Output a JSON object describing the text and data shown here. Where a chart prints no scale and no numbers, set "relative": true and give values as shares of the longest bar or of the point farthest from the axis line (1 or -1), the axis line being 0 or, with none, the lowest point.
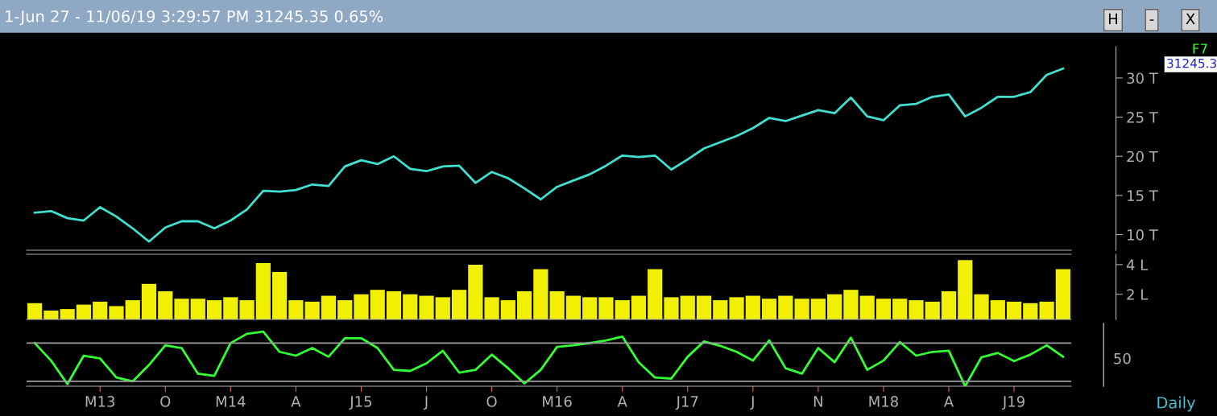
{
  "chart_data": [
    {
      "type": "line",
      "title": "1-Jun 27 - 11/06/19 3:29:57 PM 31245.35 0.65%",
      "annotations": [
        "31245.3",
        "F7",
        "H",
        "-",
        "X"
      ],
      "categories": [
        null,
        null,
        null,
        null,
        null,
        null,
        null,
        null,
        null,
        null,
        null,
        null,
        null,
        null,
        null,
        null,
        null,
        null,
        null,
        null,
        null,
        null,
        null,
        null,
        null,
        null,
        null,
        null,
        null,
        null,
        null,
        null,
        null,
        null,
        null,
        null,
        null,
        null,
        null,
        null,
        null,
        null,
        null,
        null,
        null,
        null,
        null,
        null,
        null,
        null,
        null,
        null,
        null,
        null,
        null,
        null,
        null,
        null,
        null,
        null,
        null,
        null,
        null,
        null
      ],
      "series": [
        {
          "color": "#40e0d0",
          "values": [
            12.8,
            13.0,
            12.1,
            11.8,
            13.5,
            12.3,
            10.8,
            9.1,
            10.9,
            11.7,
            11.7,
            10.8,
            11.8,
            13.2,
            15.6,
            15.5,
            15.7,
            16.4,
            16.2,
            18.7,
            19.5,
            19.0,
            20.0,
            18.4,
            18.1,
            18.7,
            18.8,
            16.6,
            18.0,
            17.2,
            15.9,
            14.5,
            16.1,
            16.9,
            17.7,
            18.8,
            20.1,
            19.9,
            20.1,
            18.3,
            19.6,
            21.0,
            21.8,
            22.6,
            23.6,
            24.9,
            24.5,
            25.2,
            25.9,
            25.5,
            27.5,
            25.1,
            24.6,
            26.5,
            26.7,
            27.6,
            27.9,
            25.1,
            26.2,
            27.6,
            27.6,
            28.2,
            30.4,
            31.2
          ]
        }
      ],
      "ylim": [
        8,
        34
      ],
      "yticks": [
        {
          "value": 10,
          "label": "10 T"
        },
        {
          "value": 15,
          "label": "15 T"
        },
        {
          "value": 20,
          "label": "20 T"
        },
        {
          "value": 25,
          "label": "25 T"
        },
        {
          "value": 30,
          "label": "30 T"
        }
      ],
      "tick_labels": "y"
    },
    {
      "type": "bar",
      "categories": [
        null,
        null,
        null,
        null,
        null,
        null,
        null,
        null,
        null,
        null,
        null,
        null,
        null,
        null,
        null,
        null,
        null,
        null,
        null,
        null,
        null,
        null,
        null,
        null,
        null,
        null,
        null,
        null,
        null,
        null,
        null,
        null,
        null,
        null,
        null,
        null,
        null,
        null,
        null,
        null,
        null,
        null,
        null,
        null,
        null,
        null,
        null,
        null,
        null,
        null,
        null,
        null,
        null,
        null,
        null,
        null,
        null,
        null,
        null,
        null,
        null,
        null,
        null,
        null
      ],
      "series": [
        {
          "color": "#f0f000",
          "values": [
            1.4,
            0.9,
            1.0,
            1.3,
            1.5,
            1.2,
            1.6,
            2.7,
            2.2,
            1.7,
            1.7,
            1.6,
            1.8,
            1.6,
            4.1,
            3.5,
            1.6,
            1.5,
            1.9,
            1.6,
            2.0,
            2.3,
            2.2,
            2.0,
            1.9,
            1.8,
            2.3,
            4.0,
            1.8,
            1.6,
            2.2,
            3.7,
            2.2,
            1.9,
            1.8,
            1.8,
            1.6,
            1.9,
            3.7,
            1.8,
            1.9,
            1.9,
            1.6,
            1.8,
            1.9,
            1.7,
            1.9,
            1.7,
            1.7,
            2.0,
            2.3,
            1.9,
            1.7,
            1.7,
            1.6,
            1.5,
            2.2,
            4.3,
            2.0,
            1.6,
            1.5,
            1.4,
            1.5,
            3.7
          ]
        }
      ],
      "ylim": [
        0.3,
        4.7
      ],
      "yticks": [
        {
          "value": 2,
          "label": "2 L"
        },
        {
          "value": 4,
          "label": "4 L"
        }
      ],
      "tick_labels": "y"
    },
    {
      "type": "line",
      "relative": true,
      "annotations": [
        "50",
        "Daily"
      ],
      "categories": [
        null,
        null,
        null,
        null,
        "M13",
        null,
        null,
        null,
        "O",
        null,
        null,
        null,
        "M14",
        null,
        null,
        null,
        "A",
        null,
        null,
        null,
        "J15",
        null,
        null,
        null,
        "J",
        null,
        null,
        null,
        "O",
        null,
        null,
        null,
        "M16",
        null,
        null,
        null,
        "A",
        null,
        null,
        null,
        "J17",
        null,
        null,
        null,
        "J",
        null,
        null,
        null,
        "N",
        null,
        null,
        null,
        "M18",
        null,
        null,
        null,
        "A",
        null,
        null,
        null,
        "J19",
        null,
        null,
        null
      ],
      "series": [
        {
          "color": "#33ff33",
          "values": [
            0.79,
            0.47,
            0.04,
            0.56,
            0.51,
            0.16,
            0.09,
            0.39,
            0.75,
            0.7,
            0.23,
            0.19,
            0.79,
            0.96,
            1.0,
            0.63,
            0.56,
            0.7,
            0.54,
            0.88,
            0.88,
            0.7,
            0.3,
            0.28,
            0.42,
            0.65,
            0.25,
            0.3,
            0.58,
            0.33,
            0.05,
            0.3,
            0.72,
            0.75,
            0.79,
            0.84,
            0.91,
            0.44,
            0.16,
            0.14,
            0.54,
            0.82,
            0.74,
            0.63,
            0.47,
            0.84,
            0.33,
            0.23,
            0.7,
            0.44,
            0.89,
            0.3,
            0.47,
            0.81,
            0.56,
            0.63,
            0.65,
            0.0,
            0.53,
            0.61,
            0.46,
            0.58,
            0.75,
            0.54
          ]
        }
      ],
      "tick_labels": "x",
      "ref_lines": [
        {
          "axis": "y",
          "value": 0.09,
          "color": "#a0a0a0"
        },
        {
          "axis": "y",
          "value": 0.79,
          "color": "#a0a0a0"
        }
      ]
    }
  ]
}
